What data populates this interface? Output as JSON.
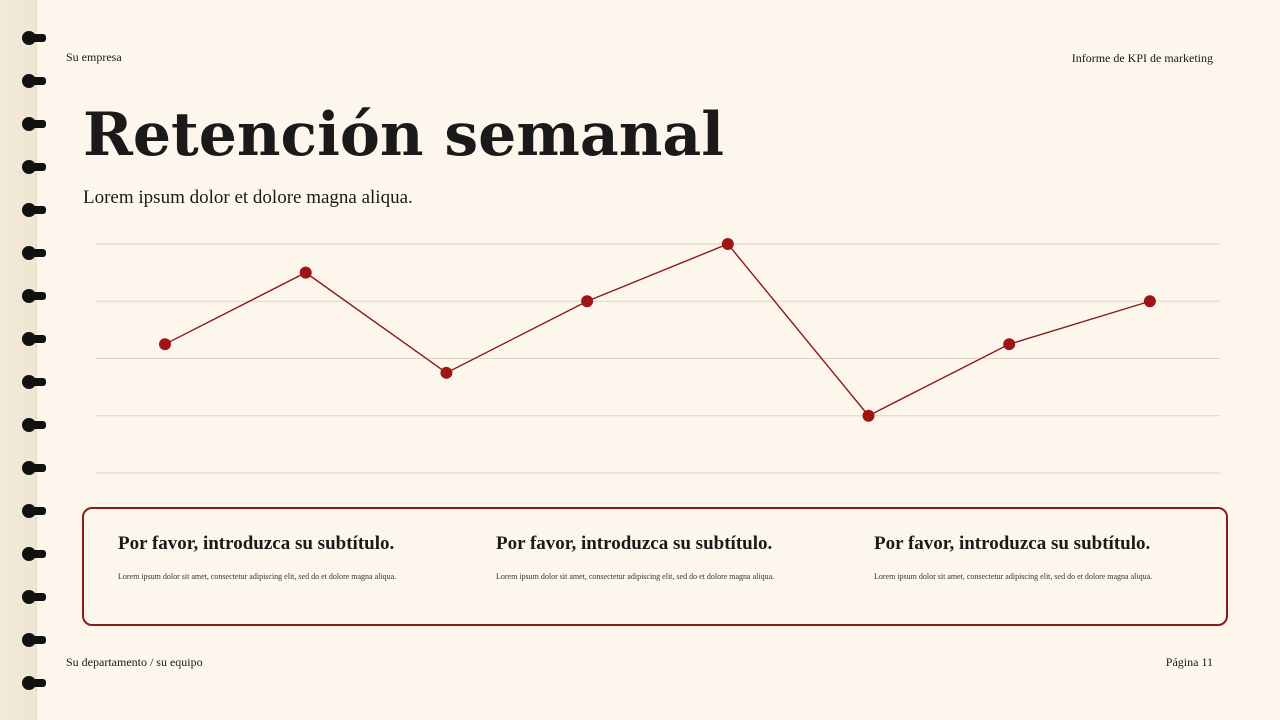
{
  "header": {
    "company": "Su empresa",
    "report": "Informe de KPI de marketing"
  },
  "title": "Retención semanal",
  "subtitle": "Lorem ipsum dolor et dolore magna aliqua.",
  "cards": [
    {
      "heading": "Por favor, introduzca su subtítulo.",
      "body": "Lorem ipsum dolor sit amet, consectetur adipiscing elit, sed do et dolore magna aliqua."
    },
    {
      "heading": "Por favor, introduzca su subtítulo.",
      "body": "Lorem ipsum dolor sit amet, consectetur adipiscing elit, sed do et dolore magna aliqua."
    },
    {
      "heading": "Por favor, introduzca su subtítulo.",
      "body": "Lorem ipsum dolor sit amet, consectetur adipiscing elit, sed do et dolore magna aliqua."
    }
  ],
  "footer": {
    "department": "Su departamento / su equipo",
    "page": "Página 11"
  },
  "colors": {
    "accent": "#8b1a1a",
    "point": "#9e1515",
    "grid": "#ddd3c4",
    "background": "#fdf6ec"
  },
  "chart_data": {
    "type": "line",
    "title": "",
    "xlabel": "",
    "ylabel": "",
    "ylim": [
      0,
      4
    ],
    "grid": true,
    "series": [
      {
        "name": "Retención",
        "values": [
          2.25,
          3.5,
          1.75,
          3.0,
          4.0,
          1.0,
          2.25,
          3.0
        ]
      }
    ]
  }
}
